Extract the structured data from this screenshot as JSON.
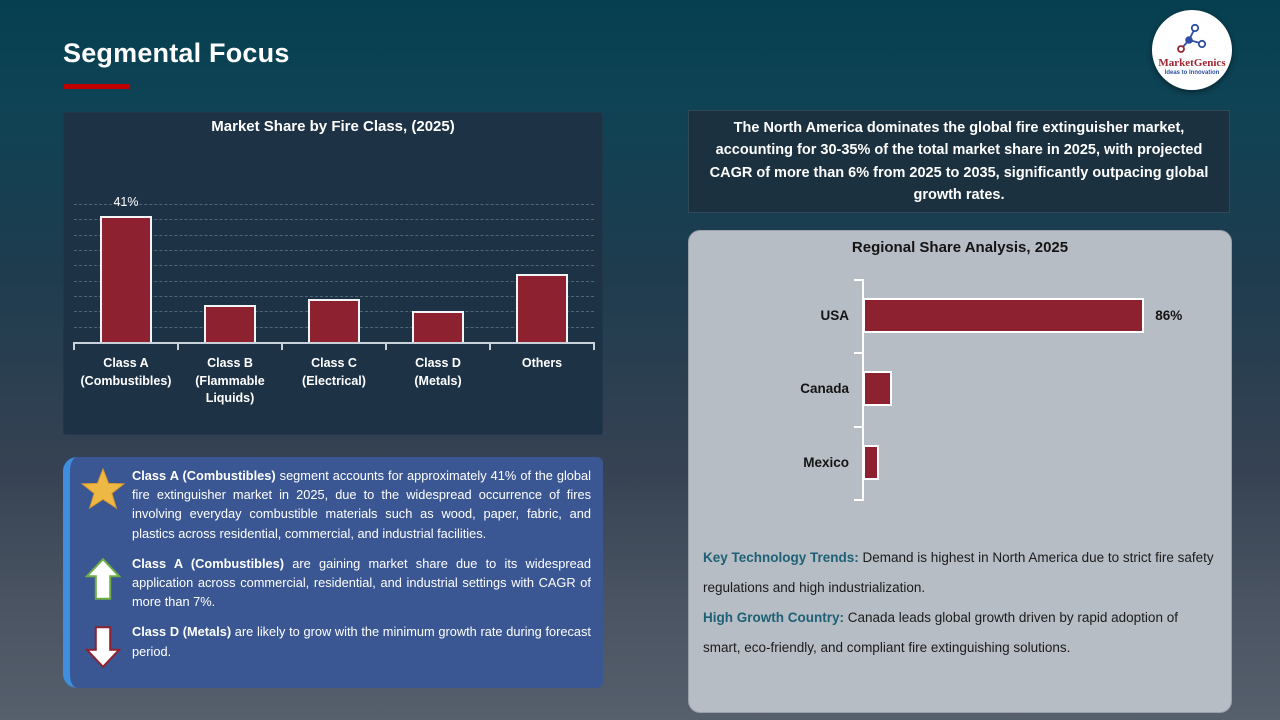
{
  "slide": {
    "title": "Segmental Focus"
  },
  "logo": {
    "name": "MarketGenics",
    "tagline": "Ideas to Innovation"
  },
  "colors": {
    "accent_red": "#C00000",
    "bar_red": "#8E2130",
    "chart_panel_navy": "#1D3345",
    "insight_box_blue": "#3B5793",
    "insight_box_stripe": "#3E8EDD",
    "na_box_navy": "#1C313F",
    "regional_panel_gray": "#B7BDC5",
    "note_lead_teal": "#1E6075",
    "star_gold": "#EDB844",
    "up_arrow_green": "#6FAD47"
  },
  "chart_data": [
    {
      "id": "fire-class-share",
      "type": "bar",
      "orientation": "vertical",
      "title": "Market Share by Fire Class, (2025)",
      "categories": [
        "Class A (Combustibles)",
        "Class B (Flammable Liquids)",
        "Class C (Electrical)",
        "Class D (Metals)",
        "Others"
      ],
      "values": [
        41,
        12,
        14,
        10,
        22
      ],
      "unit": "%",
      "data_labels": [
        "41%",
        "",
        "",
        "",
        ""
      ],
      "ylim": [
        0,
        45
      ],
      "gridlines": "horizontal dashed every 5%",
      "bar_color": "#8E2130"
    },
    {
      "id": "regional-share",
      "type": "bar",
      "orientation": "horizontal",
      "title": "Regional Share Analysis, 2025",
      "categories": [
        "USA",
        "Canada",
        "Mexico"
      ],
      "values": [
        86,
        9,
        5
      ],
      "unit": "%",
      "data_labels": [
        "86%",
        "",
        ""
      ],
      "xlim": [
        0,
        100
      ],
      "bar_color": "#8E2130"
    }
  ],
  "na_highlight": {
    "text": "The North America dominates the global fire extinguisher market, accounting for 30-35% of the total market share in 2025, with projected CAGR of more than 6% from 2025 to 2035, significantly outpacing global growth rates."
  },
  "insights": {
    "bullets": [
      {
        "icon": "star-icon",
        "lead": "Class A (Combustibles)",
        "text": " segment accounts for approximately 41% of the global fire extinguisher market in 2025, due to the widespread occurrence of fires involving everyday combustible materials such as wood, paper, fabric, and plastics across residential, commercial, and industrial facilities."
      },
      {
        "icon": "up-arrow-icon",
        "lead": "Class A (Combustibles)",
        "text": " are gaining market share due to its widespread application across commercial, residential, and industrial settings with CAGR of more than 7%."
      },
      {
        "icon": "down-arrow-icon",
        "lead": "Class D (Metals)",
        "text": " are likely to grow with the minimum growth rate during forecast period."
      }
    ]
  },
  "regional_notes": [
    {
      "lead": "Key Technology Trends:",
      "text": " Demand is highest in North America due to strict fire safety regulations and high industrialization."
    },
    {
      "lead": "High Growth Country:",
      "text": " Canada leads global growth driven by rapid adoption of smart, eco-friendly, and compliant fire extinguishing solutions."
    }
  ]
}
